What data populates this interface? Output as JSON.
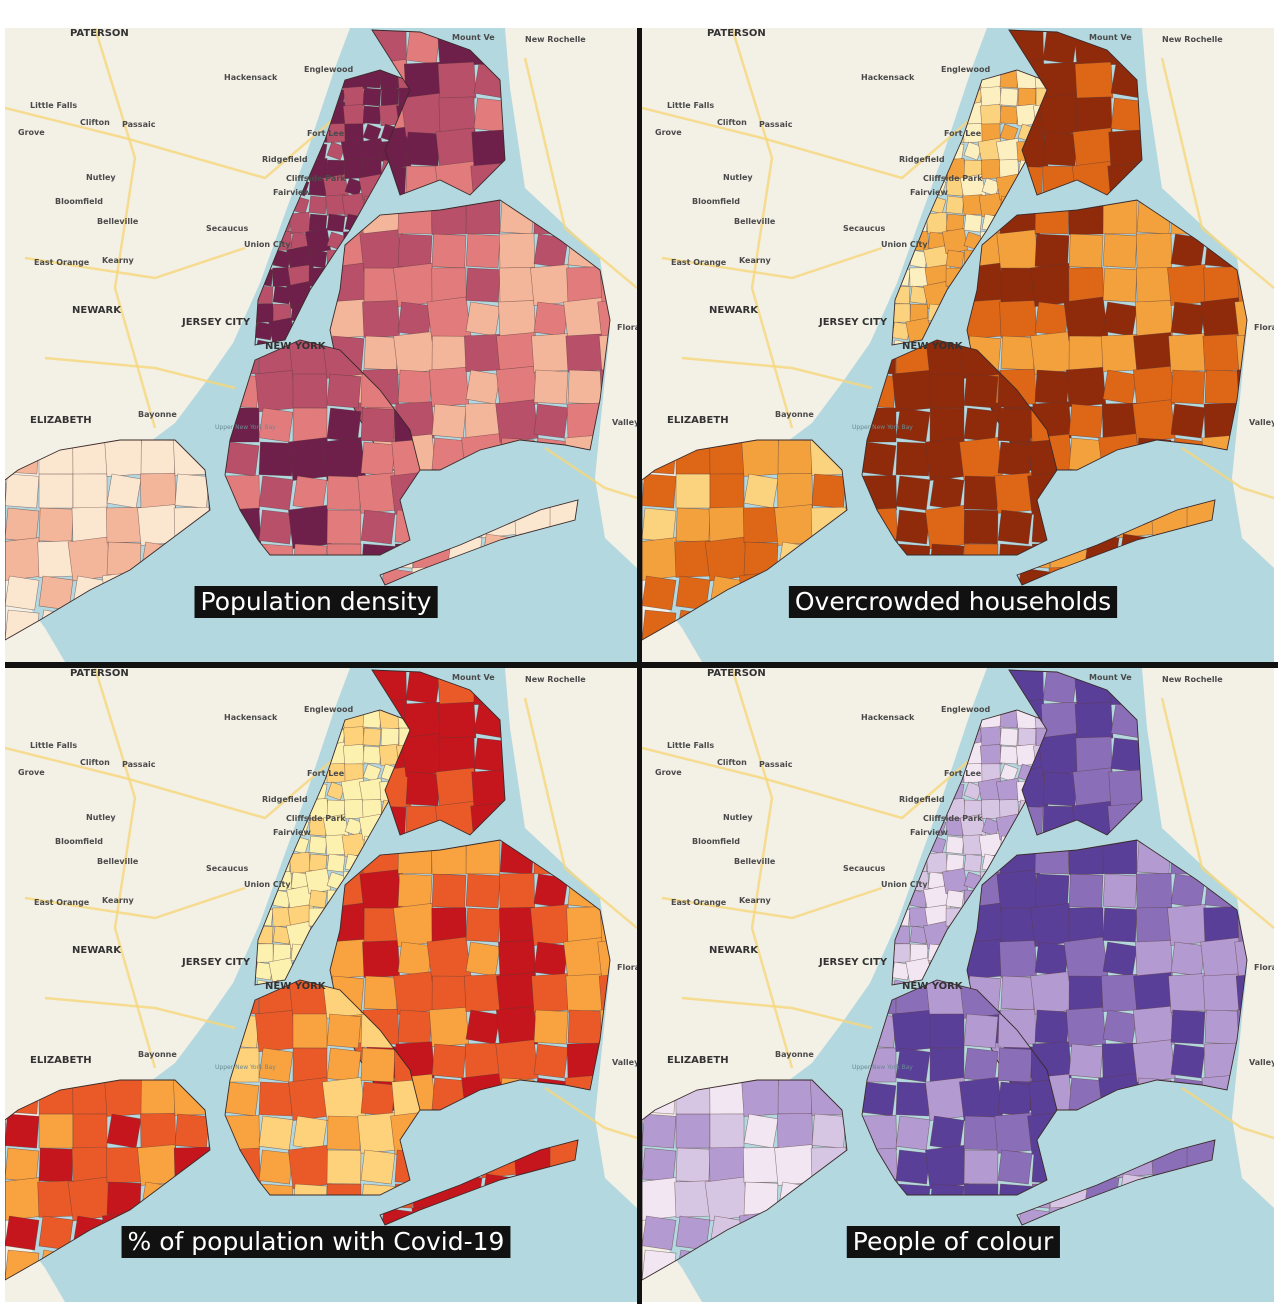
{
  "panels": [
    {
      "title": "Population density"
    },
    {
      "title": "Overcrowded households"
    },
    {
      "title": "% of population with Covid-19"
    },
    {
      "title": "People of colour"
    }
  ],
  "place_labels": [
    "PATERSON",
    "Mount Ve",
    "New Rochelle",
    "Hackensack",
    "Englewood",
    "Little Falls",
    "Grove",
    "Clifton",
    "Passaic",
    "Fort Lee",
    "Ridgefield",
    "Nutley",
    "Cliffside Park",
    "Fairview",
    "Bloomfield",
    "Belleville",
    "Secaucus",
    "Union City",
    "East Orange",
    "Kearny",
    "NEWARK",
    "JERSEY CITY",
    "NEW YORK",
    "Floral Park",
    "Bayonne",
    "ELIZABETH",
    "Valley Stream",
    "Upper New York Bay"
  ]
}
